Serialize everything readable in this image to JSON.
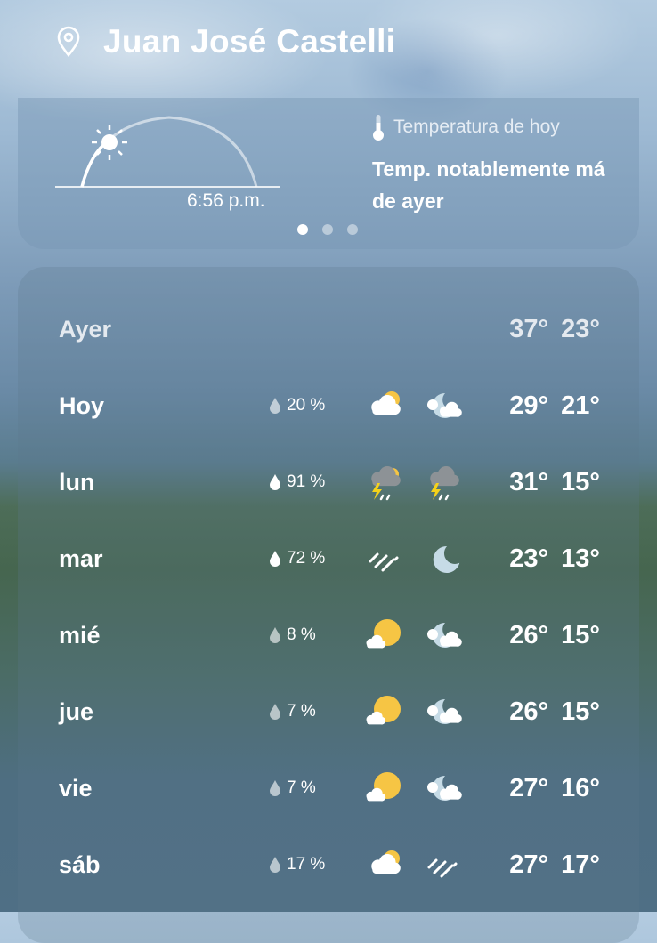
{
  "location": {
    "name": "Juan José Castelli",
    "icon": "location-pin-icon"
  },
  "sun_card": {
    "time": "6:56 p.m.",
    "icon": "sunset-arc-icon"
  },
  "today_card": {
    "label": "Temperatura de hoy",
    "icon": "thermometer-icon",
    "text": "Temp. notablemente má",
    "text2": "de ayer"
  },
  "pager": {
    "pages": 3,
    "active": 1
  },
  "forecast": [
    {
      "day": "Ayer",
      "precip": "",
      "day_icon": "",
      "night_icon": "",
      "high": "37°",
      "low": "23°"
    },
    {
      "day": "Hoy",
      "precip": "20 %",
      "day_icon": "partly-cloudy",
      "night_icon": "cloudy-night",
      "high": "29°",
      "low": "21°"
    },
    {
      "day": "lun",
      "precip": "91 %",
      "day_icon": "thunderstorm-day",
      "night_icon": "thunderstorm",
      "high": "31°",
      "low": "15°"
    },
    {
      "day": "mar",
      "precip": "72 %",
      "day_icon": "rain",
      "night_icon": "moon",
      "high": "23°",
      "low": "13°"
    },
    {
      "day": "mié",
      "precip": "8 %",
      "day_icon": "mostly-sunny",
      "night_icon": "cloudy-night",
      "high": "26°",
      "low": "15°"
    },
    {
      "day": "jue",
      "precip": "7 %",
      "day_icon": "mostly-sunny",
      "night_icon": "cloudy-night",
      "high": "26°",
      "low": "15°"
    },
    {
      "day": "vie",
      "precip": "7 %",
      "day_icon": "mostly-sunny",
      "night_icon": "cloudy-night",
      "high": "27°",
      "low": "16°"
    },
    {
      "day": "sáb",
      "precip": "17 %",
      "day_icon": "partly-cloudy",
      "night_icon": "rain",
      "high": "27°",
      "low": "17°"
    }
  ],
  "colors": {
    "sun": "#f6c544",
    "moon": "#c6dbe6",
    "cloud": "#ffffff",
    "storm_cloud": "#8d9296",
    "bolt": "#f5d21a"
  }
}
